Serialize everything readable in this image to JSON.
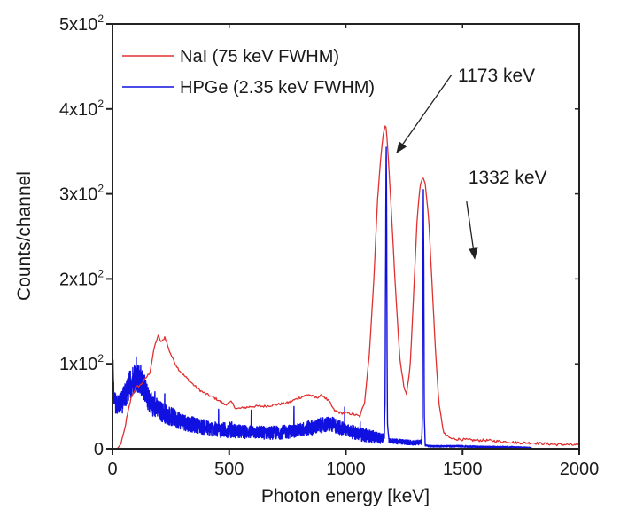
{
  "chart_data": {
    "type": "line",
    "title": "",
    "xlabel": "Photon energy [keV]",
    "ylabel": "Counts/channel",
    "xlim": [
      0,
      2000
    ],
    "ylim": [
      0,
      500
    ],
    "grid": false,
    "legend_placement": "top-left",
    "x_ticks": [
      {
        "value": 0,
        "label": "0"
      },
      {
        "value": 500,
        "label": "500"
      },
      {
        "value": 1000,
        "label": "1000"
      },
      {
        "value": 1500,
        "label": "1500"
      },
      {
        "value": 2000,
        "label": "2000"
      }
    ],
    "y_ticks": [
      {
        "value": 0,
        "mantissa": "0",
        "exp": ""
      },
      {
        "value": 100,
        "mantissa": "1x10",
        "exp": "2"
      },
      {
        "value": 200,
        "mantissa": "2x10",
        "exp": "2"
      },
      {
        "value": 300,
        "mantissa": "3x10",
        "exp": "2"
      },
      {
        "value": 400,
        "mantissa": "4x10",
        "exp": "2"
      },
      {
        "value": 500,
        "mantissa": "5x10",
        "exp": "2"
      }
    ],
    "series": [
      {
        "name": "NaI (75 keV FWHM)",
        "color": "#e03030",
        "style": "smooth",
        "x": [
          0,
          20,
          35,
          50,
          60,
          80,
          100,
          120,
          140,
          160,
          180,
          195,
          210,
          225,
          240,
          260,
          280,
          300,
          330,
          360,
          390,
          420,
          450,
          480,
          510,
          530,
          560,
          600,
          650,
          700,
          750,
          800,
          840,
          870,
          900,
          930,
          950,
          980,
          1010,
          1040,
          1060,
          1080,
          1100,
          1120,
          1135,
          1150,
          1160,
          1168,
          1173,
          1180,
          1195,
          1210,
          1230,
          1250,
          1260,
          1275,
          1290,
          1305,
          1318,
          1330,
          1340,
          1355,
          1370,
          1385,
          1400,
          1420,
          1450,
          1500,
          1550,
          1600,
          1650,
          1700,
          1750,
          1800,
          1850,
          1900,
          1950,
          2000
        ],
        "y": [
          0,
          0,
          5,
          20,
          35,
          60,
          72,
          75,
          82,
          90,
          120,
          133,
          125,
          132,
          118,
          105,
          95,
          88,
          80,
          72,
          66,
          62,
          58,
          52,
          55,
          47,
          48,
          50,
          50,
          52,
          54,
          60,
          64,
          60,
          63,
          55,
          45,
          42,
          42,
          40,
          38,
          55,
          110,
          200,
          290,
          345,
          370,
          380,
          378,
          350,
          280,
          200,
          110,
          70,
          65,
          95,
          180,
          270,
          310,
          320,
          312,
          270,
          190,
          110,
          50,
          18,
          12,
          11,
          10,
          10,
          9,
          8,
          7,
          7,
          6,
          5,
          5,
          4
        ]
      },
      {
        "name": "HPGe (2.35 keV FWHM)",
        "color": "#1010e0",
        "style": "noisy",
        "x": [
          0,
          2,
          4,
          6,
          10,
          20,
          40,
          60,
          80,
          100,
          120,
          140,
          150,
          160,
          200,
          250,
          300,
          350,
          400,
          450,
          500,
          550,
          600,
          650,
          700,
          750,
          800,
          850,
          900,
          930,
          960,
          1000,
          1050,
          1100,
          1150,
          1165,
          1168,
          1170,
          1172,
          1173,
          1174,
          1176,
          1178,
          1185,
          1200,
          1250,
          1300,
          1325,
          1328,
          1330,
          1332,
          1334,
          1336,
          1340,
          1360,
          1400,
          1500,
          1600,
          1700,
          1790,
          1800
        ],
        "y": [
          0,
          115,
          70,
          60,
          55,
          52,
          55,
          65,
          80,
          85,
          82,
          70,
          60,
          55,
          45,
          38,
          32,
          28,
          25,
          22,
          22,
          20,
          20,
          19,
          19,
          20,
          22,
          25,
          28,
          29,
          27,
          22,
          18,
          15,
          12,
          15,
          60,
          200,
          330,
          355,
          320,
          150,
          30,
          10,
          9,
          8,
          7,
          8,
          40,
          200,
          305,
          200,
          40,
          4,
          3,
          3,
          3,
          2,
          2,
          1,
          0
        ],
        "noise_amplitude": [
          0,
          0,
          12,
          12,
          12,
          12,
          14,
          16,
          18,
          18,
          18,
          16,
          14,
          14,
          12,
          11,
          10,
          9,
          9,
          9,
          9,
          8,
          8,
          8,
          8,
          8,
          8,
          9,
          9,
          9,
          9,
          8,
          8,
          8,
          6,
          6,
          0,
          0,
          0,
          0,
          0,
          0,
          0,
          3,
          3,
          3,
          3,
          3,
          0,
          0,
          0,
          0,
          0,
          1,
          1,
          1,
          1,
          1,
          1,
          1,
          0
        ]
      }
    ],
    "annotations": [
      {
        "text": "1173 keV",
        "x": 1173,
        "y": 380,
        "label_x": 1480,
        "label_y": 432
      },
      {
        "text": "1332 keV",
        "x": 1332,
        "y": 320,
        "label_x": 1525,
        "label_y": 312
      }
    ]
  }
}
